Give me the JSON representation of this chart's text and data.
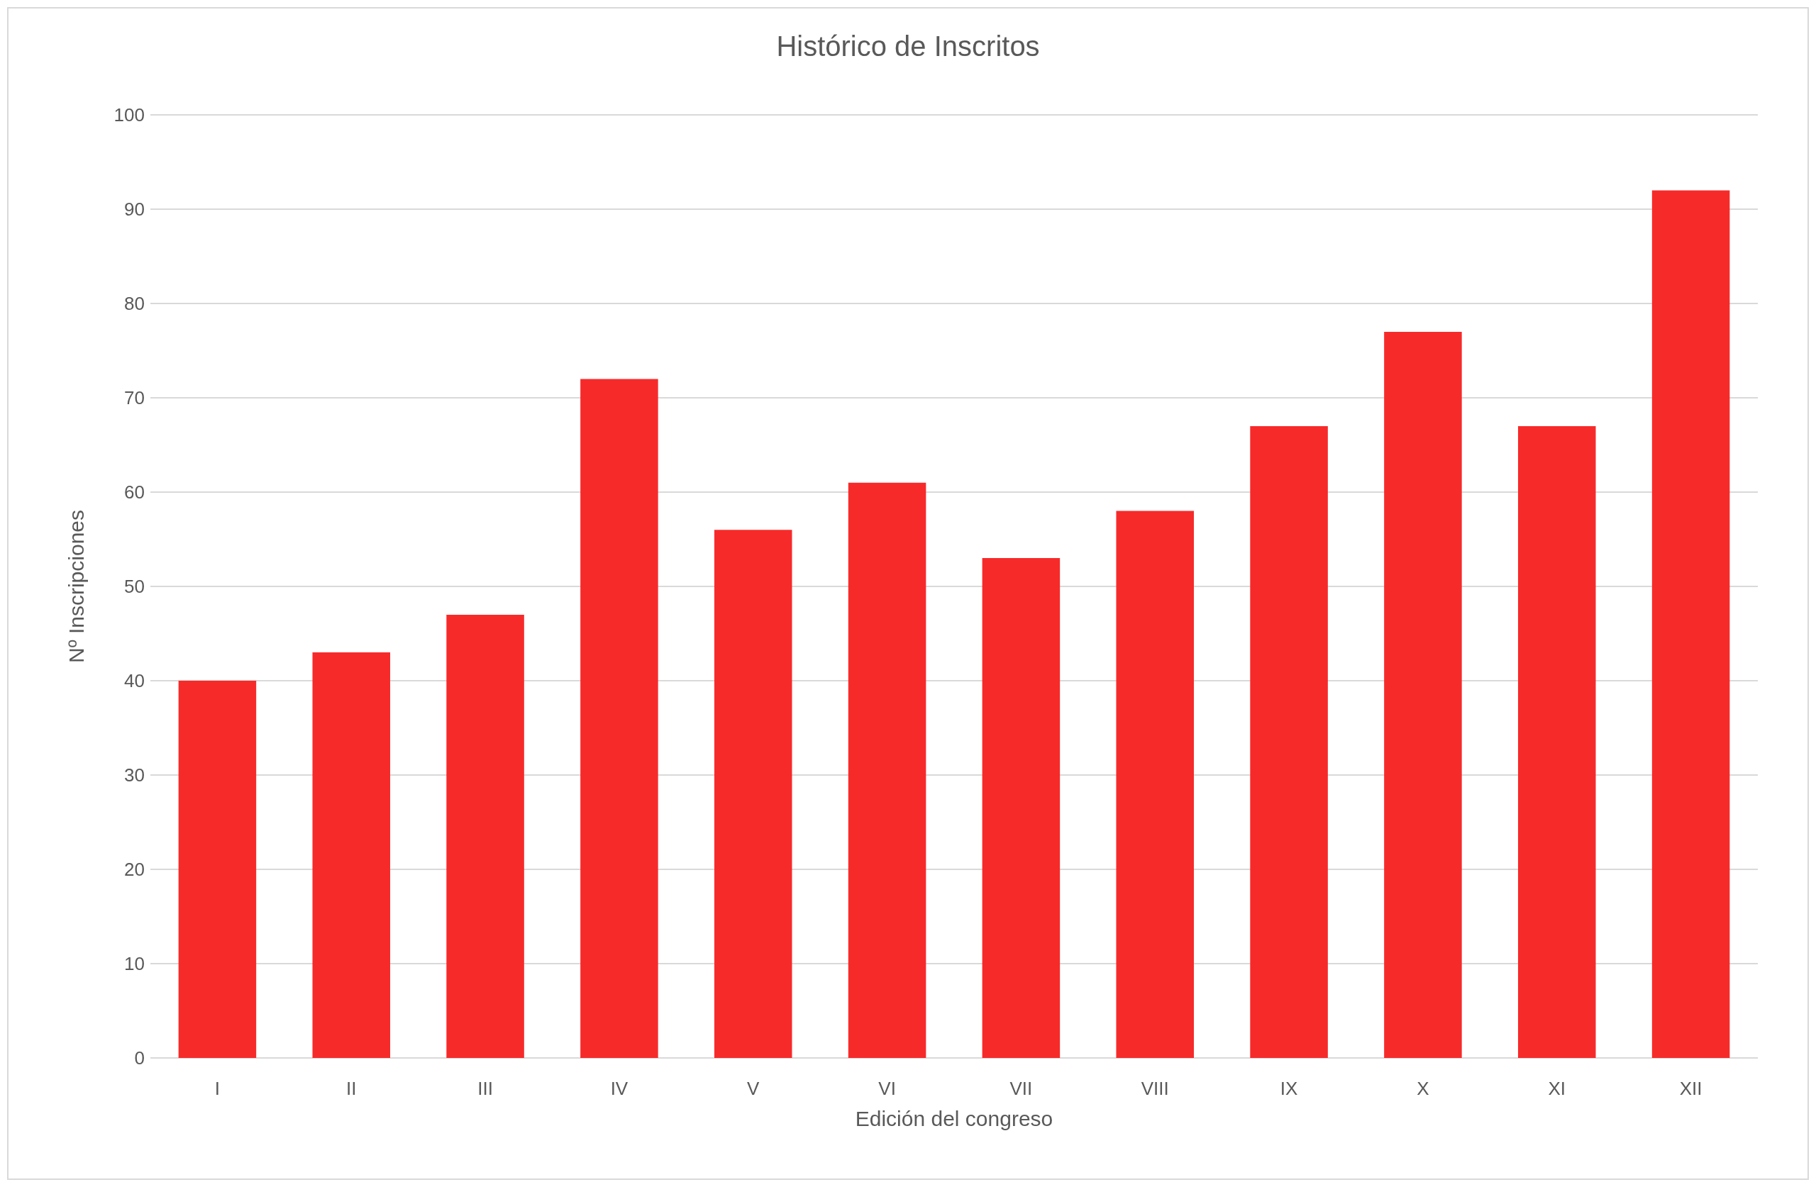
{
  "chart_data": {
    "type": "bar",
    "title": "Histórico de Inscritos",
    "xlabel": "Edición del congreso",
    "ylabel": "Nº Inscripciones",
    "categories": [
      "I",
      "II",
      "III",
      "IV",
      "V",
      "VI",
      "VII",
      "VIII",
      "IX",
      "X",
      "XI",
      "XII"
    ],
    "values": [
      40,
      43,
      47,
      72,
      56,
      61,
      53,
      58,
      67,
      77,
      67,
      92
    ],
    "color": "#f72a2a",
    "ylim": [
      0,
      100
    ],
    "yticks": [
      0,
      10,
      20,
      30,
      40,
      50,
      60,
      70,
      80,
      90,
      100
    ],
    "grid": "y"
  }
}
